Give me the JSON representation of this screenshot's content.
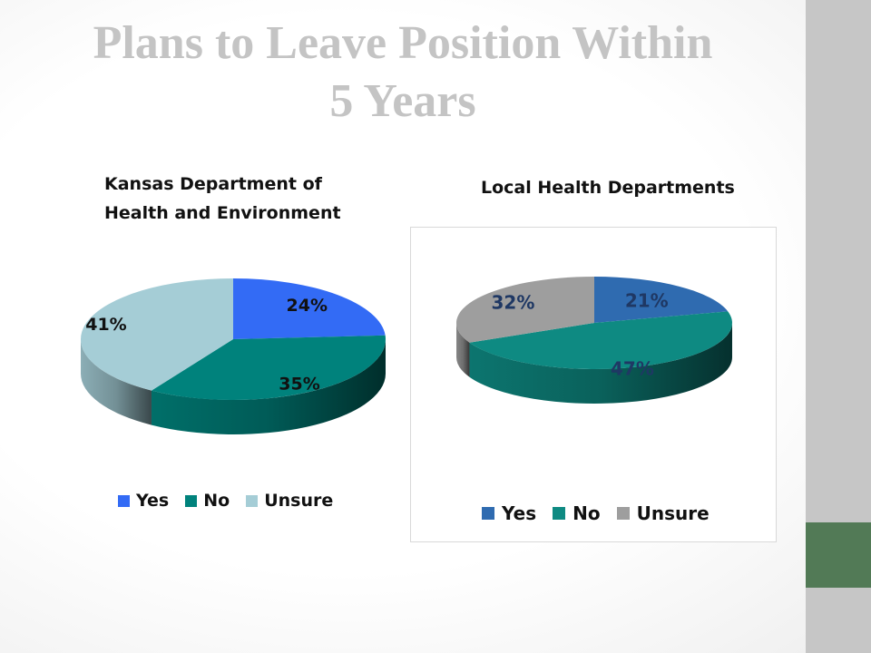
{
  "slide": {
    "title_line1": "Plans to Leave Position Within",
    "title_line2": "5 Years"
  },
  "chart_data": [
    {
      "type": "pie",
      "title_line1": "Kansas Department of",
      "title_line2": "Health and Environment",
      "categories": [
        "Yes",
        "No",
        "Unsure"
      ],
      "values": [
        24,
        35,
        41
      ],
      "labels": [
        "24%",
        "35%",
        "41%"
      ],
      "colors": [
        "#336bf5",
        "#00827c",
        "#a5cdd6"
      ],
      "label_colors": [
        "#111111",
        "#111111",
        "#111111"
      ],
      "legend_position": "bottom"
    },
    {
      "type": "pie",
      "title_line1": "Local Health Departments",
      "categories": [
        "Yes",
        "No",
        "Unsure"
      ],
      "values": [
        21,
        47,
        32
      ],
      "labels": [
        "21%",
        "47%",
        "32%"
      ],
      "colors": [
        "#2f6bb0",
        "#0e8a82",
        "#9e9e9e"
      ],
      "label_colors": [
        "#1f3864",
        "#1f3864",
        "#1f3864"
      ],
      "legend_position": "bottom"
    }
  ]
}
